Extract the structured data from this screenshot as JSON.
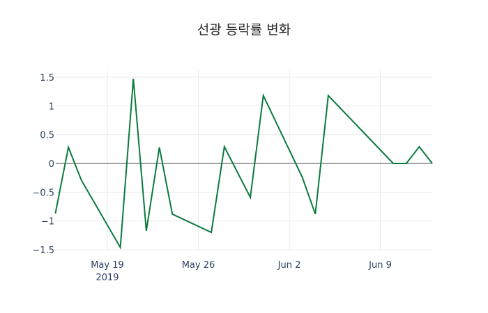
{
  "chart_data": {
    "type": "line",
    "title": "선광 등락률 변화",
    "xlabel": "",
    "ylabel": "",
    "ylim": [
      -1.6,
      1.6
    ],
    "grid": true,
    "legend": false,
    "line_color": "#0b7a3e",
    "zero_line_color": "#444444",
    "y_ticks": [
      1.5,
      1,
      0.5,
      0,
      -0.5,
      -1,
      -1.5
    ],
    "y_tick_labels": [
      "1.5",
      "1",
      "0.5",
      "0",
      "−0.5",
      "−1",
      "−1.5"
    ],
    "x_ticks": [
      {
        "date": "2019-05-19",
        "label": "May 19",
        "sublabel": "2019"
      },
      {
        "date": "2019-05-26",
        "label": "May 26",
        "sublabel": ""
      },
      {
        "date": "2019-06-02",
        "label": "Jun 2",
        "sublabel": ""
      },
      {
        "date": "2019-06-09",
        "label": "Jun 9",
        "sublabel": ""
      }
    ],
    "x": [
      "2019-05-15",
      "2019-05-16",
      "2019-05-17",
      "2019-05-20",
      "2019-05-21",
      "2019-05-22",
      "2019-05-23",
      "2019-05-24",
      "2019-05-27",
      "2019-05-28",
      "2019-05-30",
      "2019-05-31",
      "2019-06-03",
      "2019-06-04",
      "2019-06-05",
      "2019-06-10",
      "2019-06-11",
      "2019-06-12",
      "2019-06-13"
    ],
    "series": [
      {
        "name": "등락률",
        "values": [
          -0.87,
          0.28,
          -0.29,
          -1.46,
          1.47,
          -1.17,
          0.28,
          -0.88,
          -1.2,
          0.29,
          -0.59,
          1.18,
          -0.24,
          -0.88,
          1.18,
          0.0,
          0.0,
          0.29,
          0.0
        ]
      }
    ]
  }
}
